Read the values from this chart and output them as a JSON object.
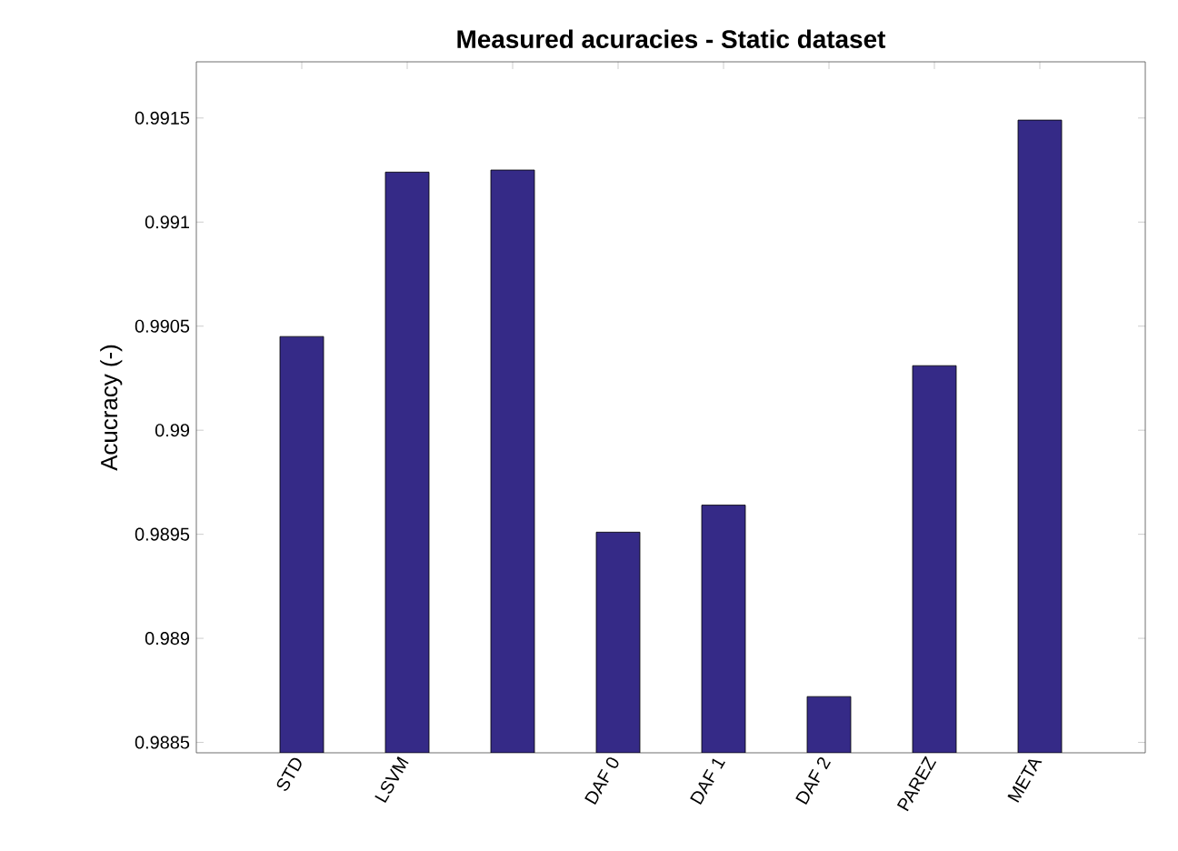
{
  "chart_data": {
    "type": "bar",
    "title": "Measured acuracies - Static dataset",
    "ylabel": "Acucracy (-)",
    "categories": [
      "STD",
      "LSVM",
      null,
      "DAF 0",
      "DAF 1",
      "DAF 2",
      "PAREZ",
      "META"
    ],
    "values": [
      0.99045,
      0.99124,
      0.99125,
      0.98951,
      0.98964,
      0.98872,
      0.99031,
      0.99149
    ],
    "color": "#352a87",
    "ylim": [
      0.98845,
      0.99177
    ],
    "yticks": [
      0.9885,
      0.989,
      0.9895,
      0.99,
      0.9905,
      0.991,
      0.9915
    ],
    "grid": false
  }
}
